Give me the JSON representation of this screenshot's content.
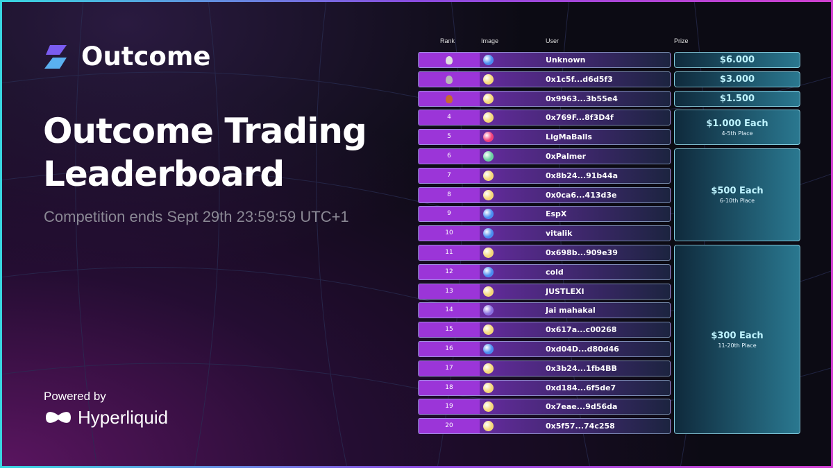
{
  "brand": "Outcome",
  "title_lines": [
    "Outcome Trading",
    "Leaderboard"
  ],
  "subtitle": "Competition ends Sept 29th 23:59:59 UTC+1",
  "powered_by": "Powered by",
  "partner": "Hyperliquid",
  "headers": [
    "Rank",
    "Image",
    "User",
    "Prize"
  ],
  "rows": [
    {
      "user": "Unknown"
    },
    {
      "user": "0x1c5f...d6d5f3"
    },
    {
      "user": "0x9963...3b55e4"
    },
    {
      "rank": 4,
      "user": "0x769F...8f3D4f"
    },
    {
      "rank": 5,
      "user": "LigMaBalls"
    },
    {
      "rank": 6,
      "user": "0xPalmer"
    },
    {
      "rank": 7,
      "user": "0x8b24...91b44a"
    },
    {
      "rank": 8,
      "user": "0x0ca6...413d3e"
    },
    {
      "rank": 9,
      "user": "EspX"
    },
    {
      "rank": 10,
      "user": "vitalik"
    },
    {
      "rank": 11,
      "user": "0x698b...909e39"
    },
    {
      "rank": 12,
      "user": "cold"
    },
    {
      "rank": 13,
      "user": "JUSTLEXI"
    },
    {
      "rank": 14,
      "user": "Jai mahakal"
    },
    {
      "rank": 15,
      "user": "0x617a...c00268"
    },
    {
      "rank": 16,
      "user": "0xd04D...d80d46"
    },
    {
      "rank": 17,
      "user": "0x3b24...1fb4BB"
    },
    {
      "rank": 18,
      "user": "0xd184...6f5de7"
    },
    {
      "rank": 19,
      "user": "0x7eae...9d56da"
    },
    {
      "rank": 20,
      "user": "0x5f57...74c258"
    }
  ],
  "prizes": [
    {
      "amount": "$6.000"
    },
    {
      "amount": "$3.000"
    },
    {
      "amount": "$1.500"
    },
    {
      "amount": "$1.000 Each",
      "note": "4-5th Place"
    },
    {
      "amount": "$500 Each",
      "note": "6-10th Place"
    },
    {
      "amount": "$300 Each",
      "note": "11-20th Place"
    }
  ]
}
